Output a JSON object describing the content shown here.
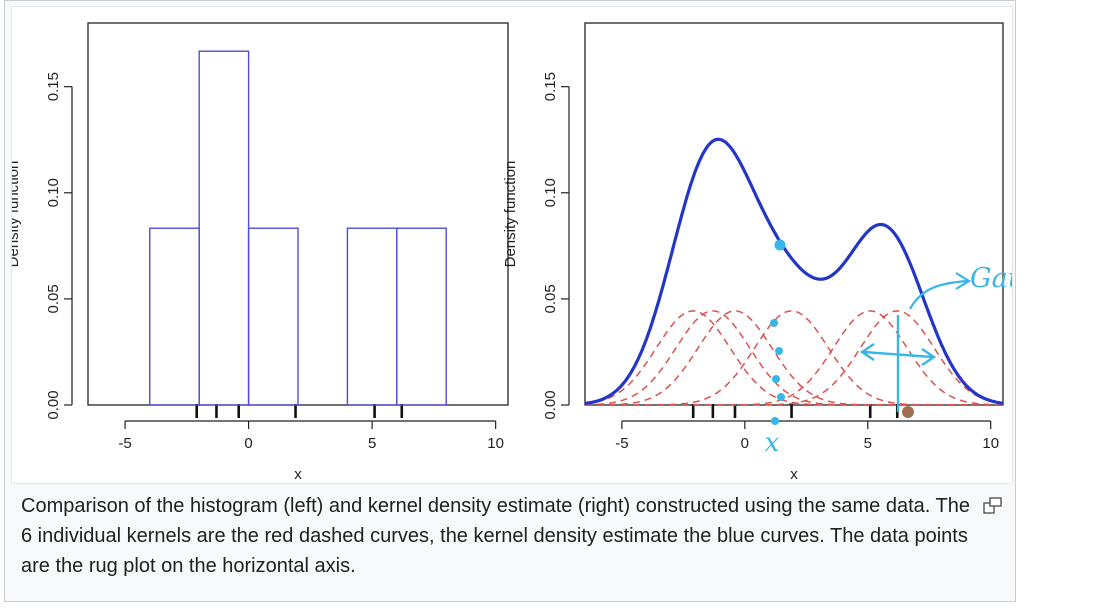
{
  "caption": "Comparison of the histogram (left) and kernel density estimate (right) constructed using the same data. The 6 individual kernels are the red dashed curves, the kernel density estimate the blue curves. The data points are the rug plot on the horizontal axis.",
  "icons": {
    "enlarge": "magnify-clip-icon"
  },
  "colors": {
    "histogram": "#4f4fd6",
    "kde": "#2436c8",
    "kernels": "#d9534f",
    "annotation": "#38b6e8",
    "axis": "#222222"
  },
  "annotation": {
    "gaussian_label": "Gaussian",
    "x_label": "x"
  },
  "chart_data": [
    {
      "type": "bar",
      "panel": "left",
      "xlabel": "x",
      "ylabel": "Density function",
      "xlim": [
        -6.5,
        10.5
      ],
      "ylim": [
        0,
        0.18
      ],
      "xticks": [
        -5,
        0,
        5,
        10
      ],
      "yticks": [
        0.0,
        0.05,
        0.1,
        0.15
      ],
      "ytick_labels": [
        "0.00",
        "0.05",
        "0.10",
        "0.15"
      ],
      "bins": [
        {
          "x0": -4,
          "x1": -2,
          "density": 0.0833
        },
        {
          "x0": -2,
          "x1": 0,
          "density": 0.1667
        },
        {
          "x0": 0,
          "x1": 2,
          "density": 0.0833
        },
        {
          "x0": 4,
          "x1": 6,
          "density": 0.0833
        },
        {
          "x0": 6,
          "x1": 8,
          "density": 0.0833
        }
      ],
      "rug": [
        -2.1,
        -1.3,
        -0.4,
        1.9,
        5.1,
        6.2
      ]
    },
    {
      "type": "line",
      "panel": "right",
      "xlabel": "x",
      "ylabel": "Density function",
      "xlim": [
        -6.5,
        10.5
      ],
      "ylim": [
        0,
        0.18
      ],
      "xticks": [
        -5,
        0,
        5,
        10
      ],
      "yticks": [
        0.0,
        0.05,
        0.1,
        0.15
      ],
      "ytick_labels": [
        "0.00",
        "0.05",
        "0.10",
        "0.15"
      ],
      "bandwidth": 1.5,
      "rug": [
        -2.1,
        -1.3,
        -0.4,
        1.9,
        5.1,
        6.2
      ],
      "series": [
        {
          "kind": "kde"
        },
        {
          "kind": "kernels"
        }
      ]
    }
  ]
}
